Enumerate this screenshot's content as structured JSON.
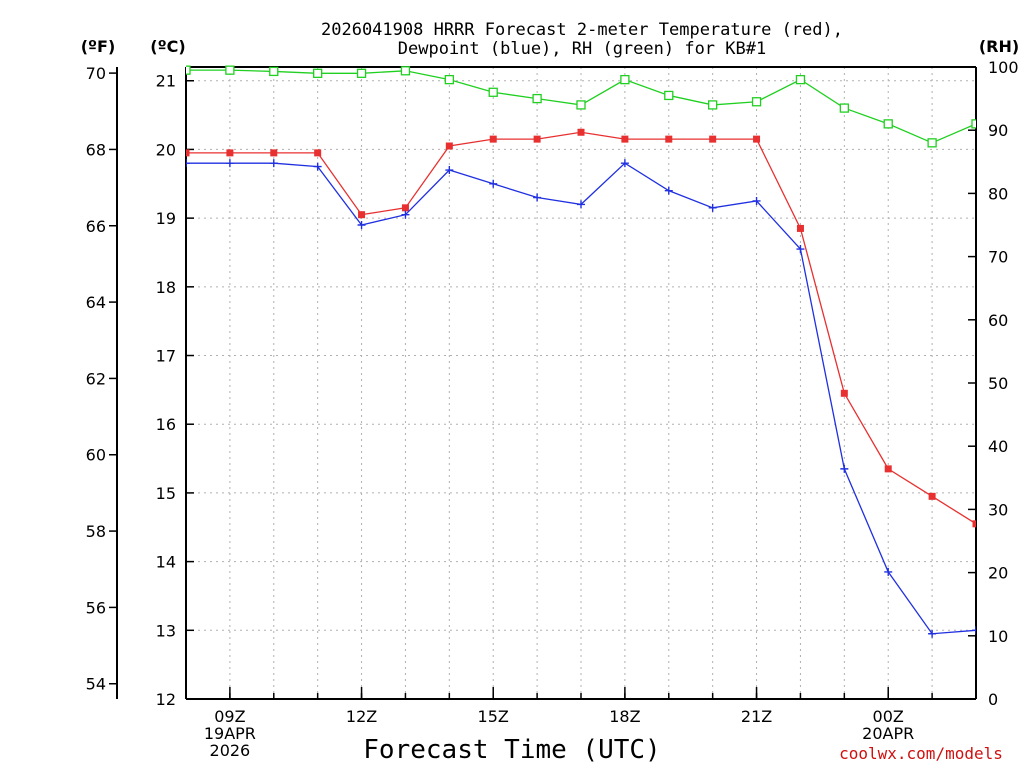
{
  "chart_data": {
    "type": "line",
    "title_line1": "2026041908 HRRR Forecast 2-meter Temperature (red),",
    "title_line2": "Dewpoint (blue), RH (green) for KB#1",
    "xlabel": "Forecast Time (UTC)",
    "credit": "coolwx.com/models",
    "units": {
      "left_outer": "(ºF)",
      "left_inner": "(ºC)",
      "right": "(RH)"
    },
    "x_hours": [
      8,
      9,
      10,
      11,
      12,
      13,
      14,
      15,
      16,
      17,
      18,
      19,
      20,
      21,
      22,
      23,
      24,
      25,
      26
    ],
    "xlim": [
      8,
      26
    ],
    "x_ticks": [
      {
        "hour": 9,
        "lines": [
          "09Z",
          "19APR",
          "2026"
        ]
      },
      {
        "hour": 12,
        "lines": [
          "12Z"
        ]
      },
      {
        "hour": 15,
        "lines": [
          "15Z"
        ]
      },
      {
        "hour": 18,
        "lines": [
          "18Z"
        ]
      },
      {
        "hour": 21,
        "lines": [
          "21Z"
        ]
      },
      {
        "hour": 24,
        "lines": [
          "00Z",
          "20APR"
        ]
      }
    ],
    "celsius_axis": {
      "ylim": [
        12,
        21.2
      ],
      "ticks": [
        12,
        13,
        14,
        15,
        16,
        17,
        18,
        19,
        20,
        21
      ]
    },
    "fahrenheit_axis": {
      "ticks": [
        54,
        56,
        58,
        60,
        62,
        64,
        66,
        68,
        70
      ]
    },
    "rh_axis": {
      "ylim": [
        0,
        100
      ],
      "ticks": [
        0,
        10,
        20,
        30,
        40,
        50,
        60,
        70,
        80,
        90,
        100
      ]
    },
    "series": [
      {
        "name": "Temperature",
        "unit": "C",
        "color": "#e83030",
        "marker": "filled-square",
        "values": [
          19.95,
          19.95,
          19.95,
          19.95,
          19.05,
          19.15,
          20.05,
          20.15,
          20.15,
          20.25,
          20.15,
          20.15,
          20.15,
          20.15,
          18.85,
          16.45,
          15.35,
          14.95,
          14.55
        ]
      },
      {
        "name": "Dewpoint",
        "unit": "C",
        "color": "#2030e0",
        "marker": "plus",
        "values": [
          19.8,
          19.8,
          19.8,
          19.75,
          18.9,
          19.05,
          19.7,
          19.5,
          19.3,
          19.2,
          19.8,
          19.4,
          19.15,
          19.25,
          18.55,
          15.35,
          13.85,
          12.95,
          13.0
        ]
      },
      {
        "name": "RH",
        "unit": "%",
        "color": "#20d020",
        "marker": "open-square",
        "values": [
          99.5,
          99.5,
          99.3,
          99.0,
          99.0,
          99.4,
          98.0,
          96.0,
          95.0,
          94.0,
          98.0,
          95.5,
          94.0,
          94.5,
          98.0,
          93.5,
          91.0,
          88.0,
          91.0
        ]
      }
    ]
  }
}
